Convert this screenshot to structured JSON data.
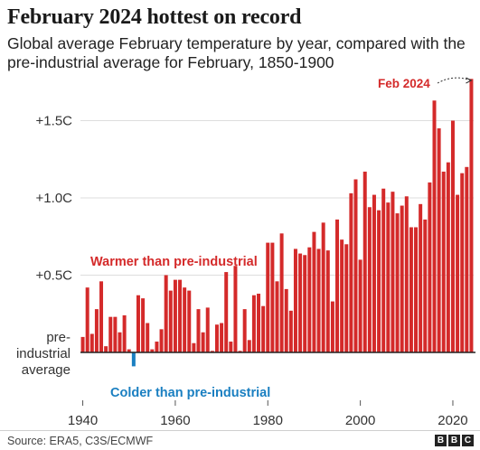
{
  "title": "February 2024 hottest on record",
  "subtitle": "Global average February temperature by year, compared with the pre-industrial average for February, 1850-1900",
  "source": "Source: ERA5, C3S/ECMWF",
  "logo": [
    "B",
    "B",
    "C"
  ],
  "colors": {
    "warm": "#d42a2a",
    "cold": "#1a7fc1",
    "baseline": "#222222",
    "grid": "#dddddd"
  },
  "chart_data": {
    "type": "bar",
    "title": "February 2024 hottest on record",
    "xlabel": "",
    "ylabel": "",
    "ylim": [
      -0.2,
      1.8
    ],
    "xlim": [
      1940,
      2024
    ],
    "grid": true,
    "x": [
      1940,
      1941,
      1942,
      1943,
      1944,
      1945,
      1946,
      1947,
      1948,
      1949,
      1950,
      1951,
      1952,
      1953,
      1954,
      1955,
      1956,
      1957,
      1958,
      1959,
      1960,
      1961,
      1962,
      1963,
      1964,
      1965,
      1966,
      1967,
      1968,
      1969,
      1970,
      1971,
      1972,
      1973,
      1974,
      1975,
      1976,
      1977,
      1978,
      1979,
      1980,
      1981,
      1982,
      1983,
      1984,
      1985,
      1986,
      1987,
      1988,
      1989,
      1990,
      1991,
      1992,
      1993,
      1994,
      1995,
      1996,
      1997,
      1998,
      1999,
      2000,
      2001,
      2002,
      2003,
      2004,
      2005,
      2006,
      2007,
      2008,
      2009,
      2010,
      2011,
      2012,
      2013,
      2014,
      2015,
      2016,
      2017,
      2018,
      2019,
      2020,
      2021,
      2022,
      2023,
      2024
    ],
    "values": [
      0.1,
      0.42,
      0.12,
      0.28,
      0.46,
      0.04,
      0.23,
      0.23,
      0.13,
      0.24,
      0.02,
      -0.09,
      0.37,
      0.35,
      0.19,
      0.02,
      0.07,
      0.15,
      0.5,
      0.4,
      0.47,
      0.47,
      0.42,
      0.4,
      0.06,
      0.28,
      0.13,
      0.29,
      0.01,
      0.18,
      0.19,
      0.52,
      0.07,
      0.56,
      0.01,
      0.28,
      0.08,
      0.37,
      0.38,
      0.3,
      0.71,
      0.71,
      0.46,
      0.77,
      0.41,
      0.27,
      0.67,
      0.64,
      0.63,
      0.68,
      0.78,
      0.67,
      0.84,
      0.66,
      0.33,
      0.86,
      0.73,
      0.7,
      1.03,
      1.12,
      0.6,
      1.17,
      0.94,
      1.02,
      0.92,
      1.06,
      0.97,
      1.04,
      0.9,
      0.95,
      1.01,
      0.81,
      0.81,
      0.96,
      0.86,
      1.1,
      1.63,
      1.45,
      1.17,
      1.23,
      1.5,
      1.02,
      1.16,
      1.2,
      1.77
    ],
    "yticks": [
      {
        "value": 0.5,
        "label": "+0.5C"
      },
      {
        "value": 1.0,
        "label": "+1.0C"
      },
      {
        "value": 1.5,
        "label": "+1.5C"
      }
    ],
    "baseline_label": [
      "pre-",
      "industrial",
      "average"
    ],
    "xticks": [
      {
        "value": 1940,
        "label": "1940"
      },
      {
        "value": 1960,
        "label": "1960"
      },
      {
        "value": 1980,
        "label": "1980"
      },
      {
        "value": 2000,
        "label": "2000"
      },
      {
        "value": 2020,
        "label": "2020"
      }
    ],
    "annotations": {
      "warmer": "Warmer than pre-industrial",
      "colder": "Colder than pre-industrial",
      "latest": "Feb 2024"
    }
  }
}
